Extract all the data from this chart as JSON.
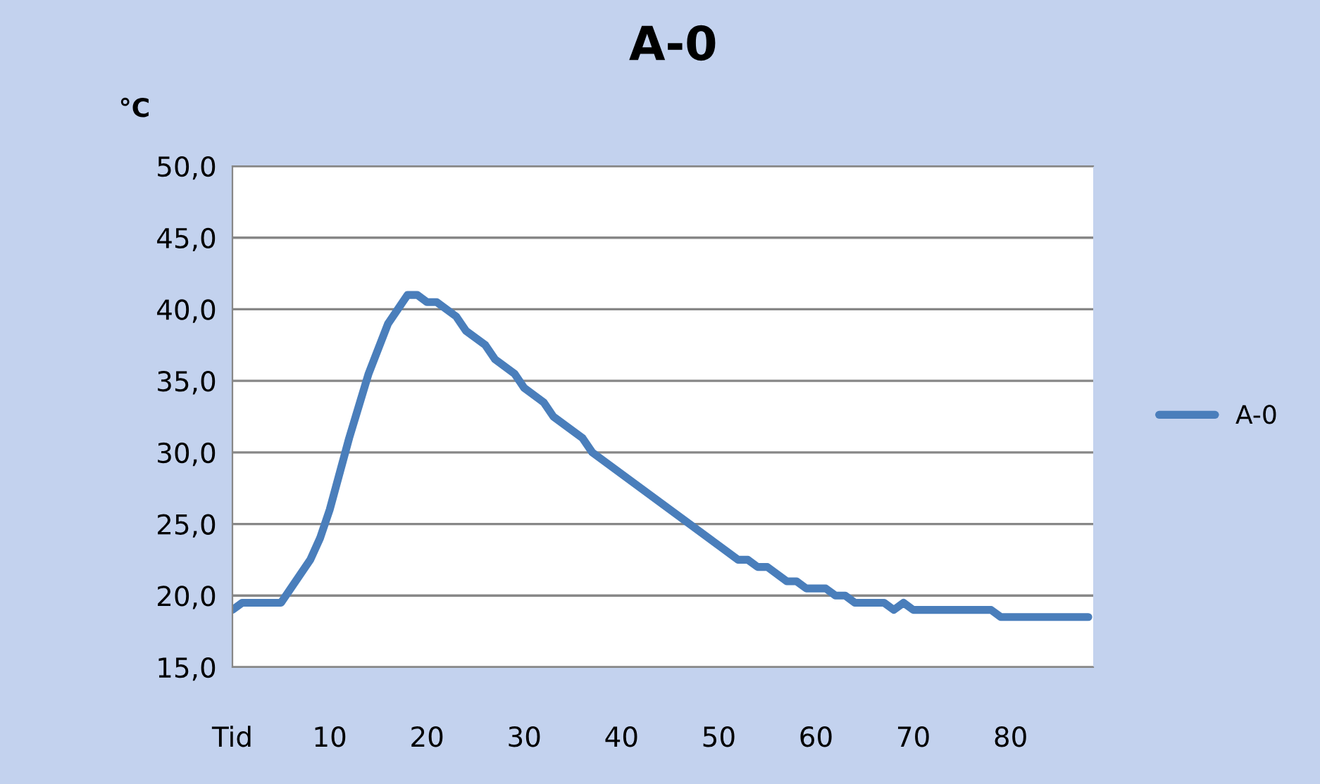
{
  "chart_data": {
    "type": "line",
    "title": "A-0",
    "ylabel": "°C",
    "x": [
      0,
      1,
      5,
      8,
      9,
      10,
      12,
      14,
      16,
      18,
      19,
      20,
      21,
      23,
      24,
      26,
      27,
      29,
      30,
      32,
      33,
      36,
      37,
      52,
      53,
      54,
      55,
      57,
      58,
      59,
      61,
      62,
      63,
      64,
      67,
      68,
      69,
      70,
      78,
      79,
      88
    ],
    "series": [
      {
        "name": "A-0",
        "color": "#4a7ebb",
        "values": [
          19,
          19.5,
          19.5,
          22.5,
          24,
          26,
          31,
          35.5,
          39,
          41,
          41,
          40.5,
          40.5,
          39.5,
          38.5,
          37.5,
          36.5,
          35.5,
          34.5,
          33.5,
          32.5,
          31,
          30,
          22.5,
          22.5,
          22,
          22,
          21,
          21,
          20.5,
          20.5,
          20,
          20,
          19.5,
          19.5,
          19,
          19.5,
          19,
          19,
          18.5,
          18.5
        ]
      }
    ],
    "xlim": [
      0,
      88.5
    ],
    "xticks": [
      {
        "value": 0,
        "label": "Tid"
      },
      10,
      20,
      30,
      40,
      50,
      60,
      70,
      80
    ],
    "ylim": [
      15,
      50
    ],
    "yticks": [
      {
        "value": 15,
        "label": "15,0"
      },
      {
        "value": 20,
        "label": "20,0"
      },
      {
        "value": 25,
        "label": "25,0"
      },
      {
        "value": 30,
        "label": "30,0"
      },
      {
        "value": 35,
        "label": "35,0"
      },
      {
        "value": 40,
        "label": "40,0"
      },
      {
        "value": 45,
        "label": "45,0"
      },
      {
        "value": 50,
        "label": "50,0"
      }
    ],
    "grid": "y",
    "legend": "right",
    "marker": "none",
    "line_style": "solid"
  }
}
